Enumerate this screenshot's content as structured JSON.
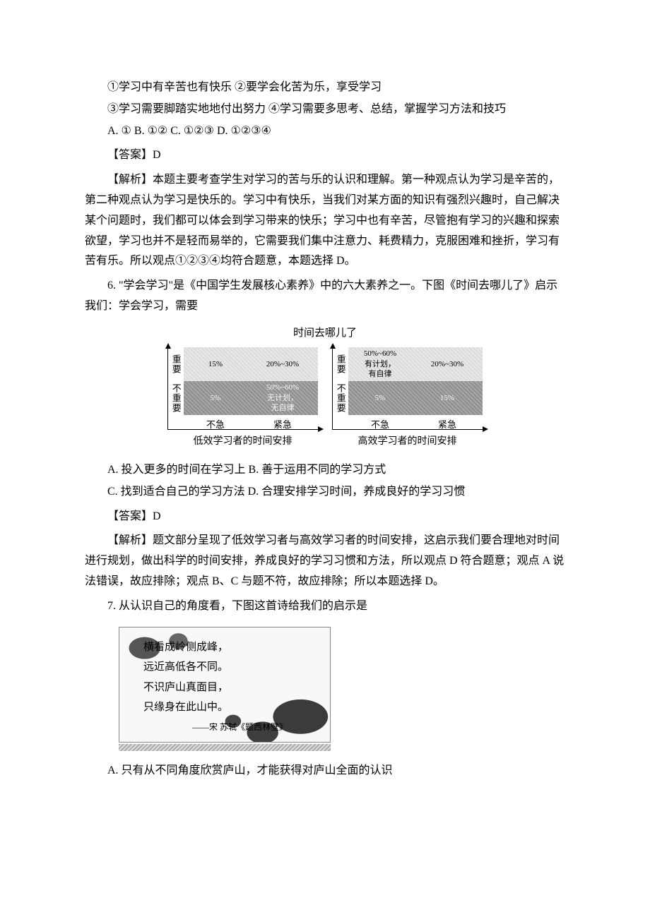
{
  "q5": {
    "stmt1": "①学习中有辛苦也有快乐 ②要学会化苦为乐，享受学习",
    "stmt2": "③学习需要脚踏实地地付出努力 ④学习需要多思考、总结，掌握学习方法和技巧",
    "options": "A. ① B. ①② C. ①②③ D. ①②③④",
    "answer": "【答案】D",
    "analysis": "【解析】本题主要考查学生对学习的苦与乐的认识和理解。第一种观点认为学习是辛苦的，第二种观点认为学习是快乐的。学习中有快乐，当我们对某方面的知识有强烈兴趣时，自己解决某个问题时，我们都可以体会到学习带来的快乐；学习中也有辛苦，尽管抱有学习的兴趣和探索欲望，学习也并不是轻而易举的，它需要我们集中注意力、耗费精力，克服困难和挫折，学习有苦有乐。所以观点①②③④均符合题意，本题选择 D。"
  },
  "q6": {
    "stem": "6. \"学会学习\"是《中国学生发展核心素养》中的六大素养之一。下图《时间去哪儿了》启示我们：学会学习，需要",
    "optA": "A. 投入更多的时间在学习上 B. 善于运用不同的学习方式",
    "optC": "C. 找到适合自己的学习方法 D. 合理安排学习时间，养成良好的学习习惯",
    "answer": "【答案】D",
    "analysis": "【解析】题文部分呈现了低效学习者与高效学习者的时间安排，这启示我们要合理地对时间进行规划，做出科学的时间安排，养成良好的学习习惯和方法，所以观点 D 符合题意；观点 A 说法错误，故应排除；观点 B、C 与题不符，故应排除；所以本题选择 D。",
    "chart": {
      "title": "时间去哪儿了",
      "y_labels": [
        "重要",
        "不重要"
      ],
      "x_labels": [
        "不急",
        "紧急"
      ],
      "left": {
        "caption": "低效学习者的时间安排",
        "cells": {
          "top_left": "15%",
          "top_right": "20%~30%",
          "bot_left": "5%",
          "bot_right": "50%~60%\n无计划，\n无自律"
        }
      },
      "right": {
        "caption": "高效学习者的时间安排",
        "cells": {
          "top_left": "50%~60%\n有计划，\n有自律",
          "top_right": "20%~30%",
          "bot_left": "5%",
          "bot_right": "15%"
        }
      }
    }
  },
  "q7": {
    "stem": "7. 从认识自己的角度看，下图这首诗给我们的启示是",
    "poem": {
      "l1": "横看成岭侧成峰，",
      "l2": "远近高低各不同。",
      "l3": "不识庐山真面目，",
      "l4": "只缘身在此山中。",
      "src": "——宋 苏轼《题西林壁》"
    },
    "optA": "A. 只有从不同角度欣赏庐山，才能获得对庐山全面的认识"
  }
}
